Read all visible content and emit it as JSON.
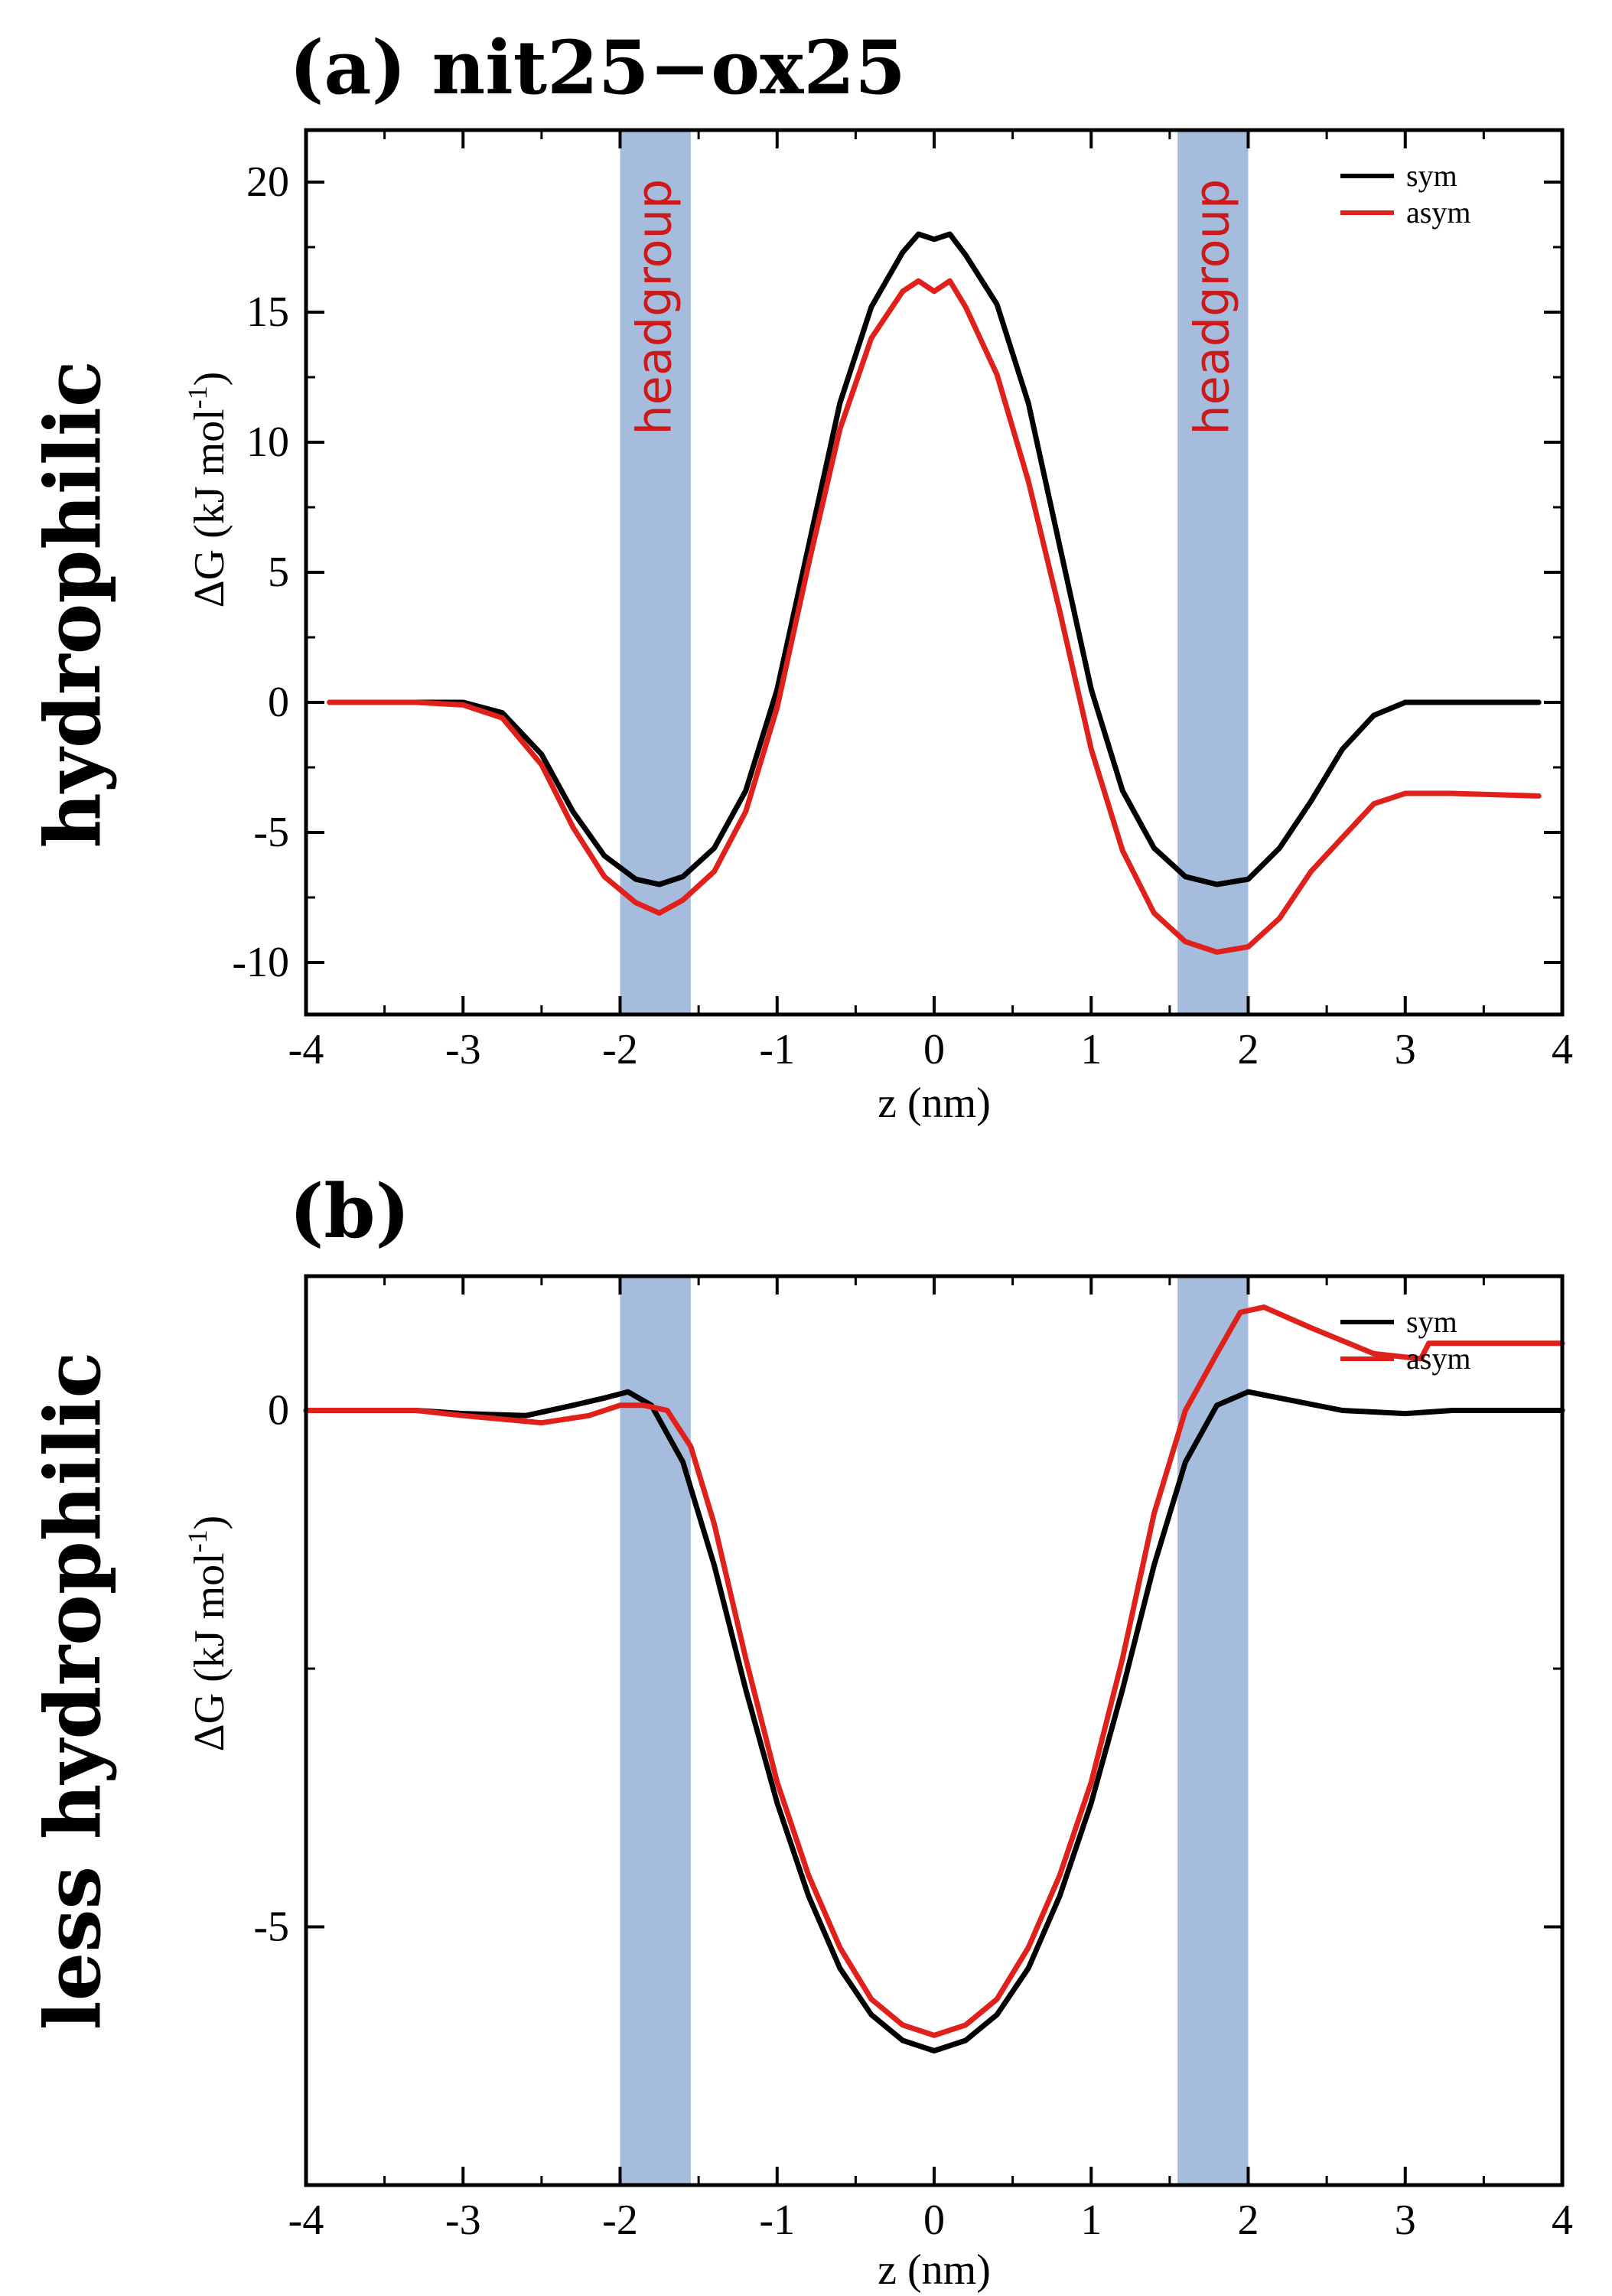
{
  "chart_data": [
    {
      "type": "line",
      "panel": "a",
      "title": "(a) nit25−ox25",
      "side_label": "hydrophilic",
      "xlabel": "z (nm)",
      "ylabel": "ΔG (kJ mol-1)",
      "ylabel_main": "ΔG (kJ mol",
      "ylabel_sup": "-1",
      "ylabel_close": ")",
      "xlim": [
        -4,
        4
      ],
      "ylim": [
        -12,
        22
      ],
      "xticks": [
        -4,
        -3,
        -2,
        -1,
        0,
        1,
        2,
        3,
        4
      ],
      "yticks": [
        -10,
        -5,
        0,
        5,
        10,
        15,
        20
      ],
      "shaded_regions": [
        {
          "x0": -2.0,
          "x1": -1.55,
          "label": "headgroup",
          "color": "#a5bcdd"
        },
        {
          "x0": 1.55,
          "x1": 2.0,
          "label": "headgroup",
          "color": "#a5bcdd"
        }
      ],
      "legend": {
        "position": "top-right",
        "entries": [
          "sym",
          "asym"
        ]
      },
      "series": [
        {
          "name": "sym",
          "color": "#000000",
          "x": [
            -3.85,
            -3.3,
            -3.0,
            -2.75,
            -2.5,
            -2.3,
            -2.1,
            -1.9,
            -1.75,
            -1.6,
            -1.4,
            -1.2,
            -1.0,
            -0.8,
            -0.6,
            -0.4,
            -0.2,
            -0.1,
            0.0,
            0.1,
            0.2,
            0.4,
            0.6,
            0.8,
            1.0,
            1.2,
            1.4,
            1.6,
            1.8,
            2.0,
            2.2,
            2.4,
            2.6,
            2.8,
            3.0,
            3.3,
            3.85
          ],
          "y": [
            0.0,
            0.0,
            0.0,
            -0.4,
            -2.0,
            -4.2,
            -5.9,
            -6.8,
            -7.0,
            -6.7,
            -5.6,
            -3.4,
            0.5,
            6.0,
            11.5,
            15.2,
            17.3,
            18.0,
            17.8,
            18.0,
            17.2,
            15.3,
            11.5,
            6.0,
            0.5,
            -3.4,
            -5.6,
            -6.7,
            -7.0,
            -6.8,
            -5.6,
            -3.8,
            -1.8,
            -0.5,
            0.0,
            0.0,
            0.0
          ]
        },
        {
          "name": "asym",
          "color": "#e0201b",
          "x": [
            -3.85,
            -3.3,
            -3.0,
            -2.75,
            -2.5,
            -2.3,
            -2.1,
            -1.9,
            -1.75,
            -1.6,
            -1.4,
            -1.2,
            -1.0,
            -0.8,
            -0.6,
            -0.4,
            -0.2,
            -0.1,
            0.0,
            0.1,
            0.2,
            0.4,
            0.6,
            0.8,
            1.0,
            1.2,
            1.4,
            1.6,
            1.8,
            2.0,
            2.2,
            2.4,
            2.6,
            2.8,
            3.0,
            3.3,
            3.85
          ],
          "y": [
            0.0,
            0.0,
            -0.1,
            -0.6,
            -2.4,
            -4.8,
            -6.7,
            -7.7,
            -8.1,
            -7.6,
            -6.5,
            -4.2,
            -0.2,
            5.3,
            10.5,
            14.0,
            15.8,
            16.2,
            15.8,
            16.2,
            15.2,
            12.6,
            8.5,
            3.5,
            -1.8,
            -5.7,
            -8.1,
            -9.2,
            -9.6,
            -9.4,
            -8.3,
            -6.5,
            -5.2,
            -3.9,
            -3.5,
            -3.5,
            -3.6
          ]
        }
      ]
    },
    {
      "type": "line",
      "panel": "b",
      "title": "(b)",
      "side_label": "less hydrophilic",
      "xlabel": "z (nm)",
      "ylabel": "ΔG (kJ mol-1)",
      "ylabel_main": "ΔG (kJ mol",
      "ylabel_sup": "-1",
      "ylabel_close": ")",
      "xlim": [
        -4,
        4
      ],
      "ylim": [
        -7.5,
        1.3
      ],
      "xticks": [
        -4,
        -3,
        -2,
        -1,
        0,
        1,
        2,
        3,
        4
      ],
      "yticks": [
        -5,
        0
      ],
      "shaded_regions": [
        {
          "x0": -2.0,
          "x1": -1.55,
          "label": "",
          "color": "#a5bcdd"
        },
        {
          "x0": 1.55,
          "x1": 2.0,
          "label": "",
          "color": "#a5bcdd"
        }
      ],
      "legend": {
        "position": "top-right",
        "entries": [
          "sym",
          "asym"
        ]
      },
      "series": [
        {
          "name": "sym",
          "color": "#000000",
          "x": [
            -4.0,
            -3.3,
            -3.0,
            -2.6,
            -2.3,
            -2.1,
            -1.95,
            -1.8,
            -1.6,
            -1.4,
            -1.2,
            -1.0,
            -0.8,
            -0.6,
            -0.4,
            -0.2,
            0.0,
            0.2,
            0.4,
            0.6,
            0.8,
            1.0,
            1.2,
            1.4,
            1.6,
            1.8,
            2.0,
            2.2,
            2.6,
            3.0,
            3.3,
            4.0
          ],
          "y": [
            0.0,
            0.0,
            -0.03,
            -0.05,
            0.05,
            0.12,
            0.18,
            0.05,
            -0.5,
            -1.5,
            -2.7,
            -3.8,
            -4.7,
            -5.4,
            -5.85,
            -6.1,
            -6.2,
            -6.1,
            -5.85,
            -5.4,
            -4.7,
            -3.8,
            -2.7,
            -1.5,
            -0.5,
            0.05,
            0.18,
            0.12,
            0.0,
            -0.03,
            0.0,
            0.0
          ]
        },
        {
          "name": "asym",
          "color": "#e0201b",
          "x": [
            -4.0,
            -3.3,
            -3.0,
            -2.5,
            -2.2,
            -2.0,
            -1.85,
            -1.7,
            -1.55,
            -1.4,
            -1.2,
            -1.0,
            -0.8,
            -0.6,
            -0.4,
            -0.2,
            0.0,
            0.2,
            0.4,
            0.6,
            0.8,
            1.0,
            1.2,
            1.4,
            1.6,
            1.8,
            1.95,
            2.1,
            2.4,
            2.8,
            3.1,
            3.15,
            4.0
          ],
          "y": [
            0.0,
            0.0,
            -0.05,
            -0.12,
            -0.05,
            0.05,
            0.05,
            0.0,
            -0.35,
            -1.1,
            -2.4,
            -3.6,
            -4.5,
            -5.2,
            -5.7,
            -5.95,
            -6.05,
            -5.95,
            -5.7,
            -5.2,
            -4.5,
            -3.6,
            -2.4,
            -1.0,
            0.0,
            0.55,
            0.95,
            1.0,
            0.8,
            0.55,
            0.5,
            0.65,
            0.65
          ]
        }
      ]
    }
  ]
}
